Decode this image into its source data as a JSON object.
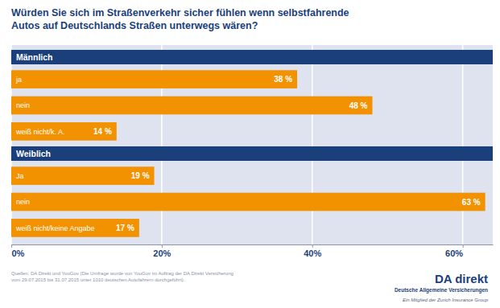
{
  "chart_data": {
    "type": "bar",
    "orientation": "horizontal",
    "title": [
      "Würden Sie sich im Straßenverkehr sicher fühlen wenn selbstfahrende",
      "Autos auf Deutschlands Straßen unterwegs wären?"
    ],
    "groups": [
      {
        "name": "Männlich",
        "categories": [
          "ja",
          "nein",
          "weiß nicht/k. A."
        ],
        "values": [
          38,
          48,
          14
        ],
        "value_labels": [
          "38 %",
          "48 %",
          "14 %"
        ]
      },
      {
        "name": "Weiblich",
        "categories": [
          "Ja",
          "nein",
          "weiß nicht/keine Angabe"
        ],
        "values": [
          19,
          63,
          17
        ],
        "value_labels": [
          "19 %",
          "63 %",
          "17 %"
        ]
      }
    ],
    "color": "#f39200",
    "xlim": [
      0,
      64
    ],
    "xticks": [
      {
        "value": 0,
        "label": "0%"
      },
      {
        "value": 20,
        "label": "20%"
      },
      {
        "value": 40,
        "label": "40%"
      },
      {
        "value": 60,
        "label": "60%"
      }
    ],
    "grid": true,
    "data_labels": true,
    "source": [
      "Quellen: DA Direkt und YouGov (Die Umfrage wurde von YouGov im Auftrag der DA Direkt Versicherung",
      "vom 29.07.2015 bis 31.07.2015 unter 1010 deutschen Autofahrern durchgeführt)."
    ],
    "logo": [
      "DA direkt",
      "Deutsche Allgemeine Versicherungen",
      "Ein Mitglied der Zurich Insurance Group"
    ]
  }
}
